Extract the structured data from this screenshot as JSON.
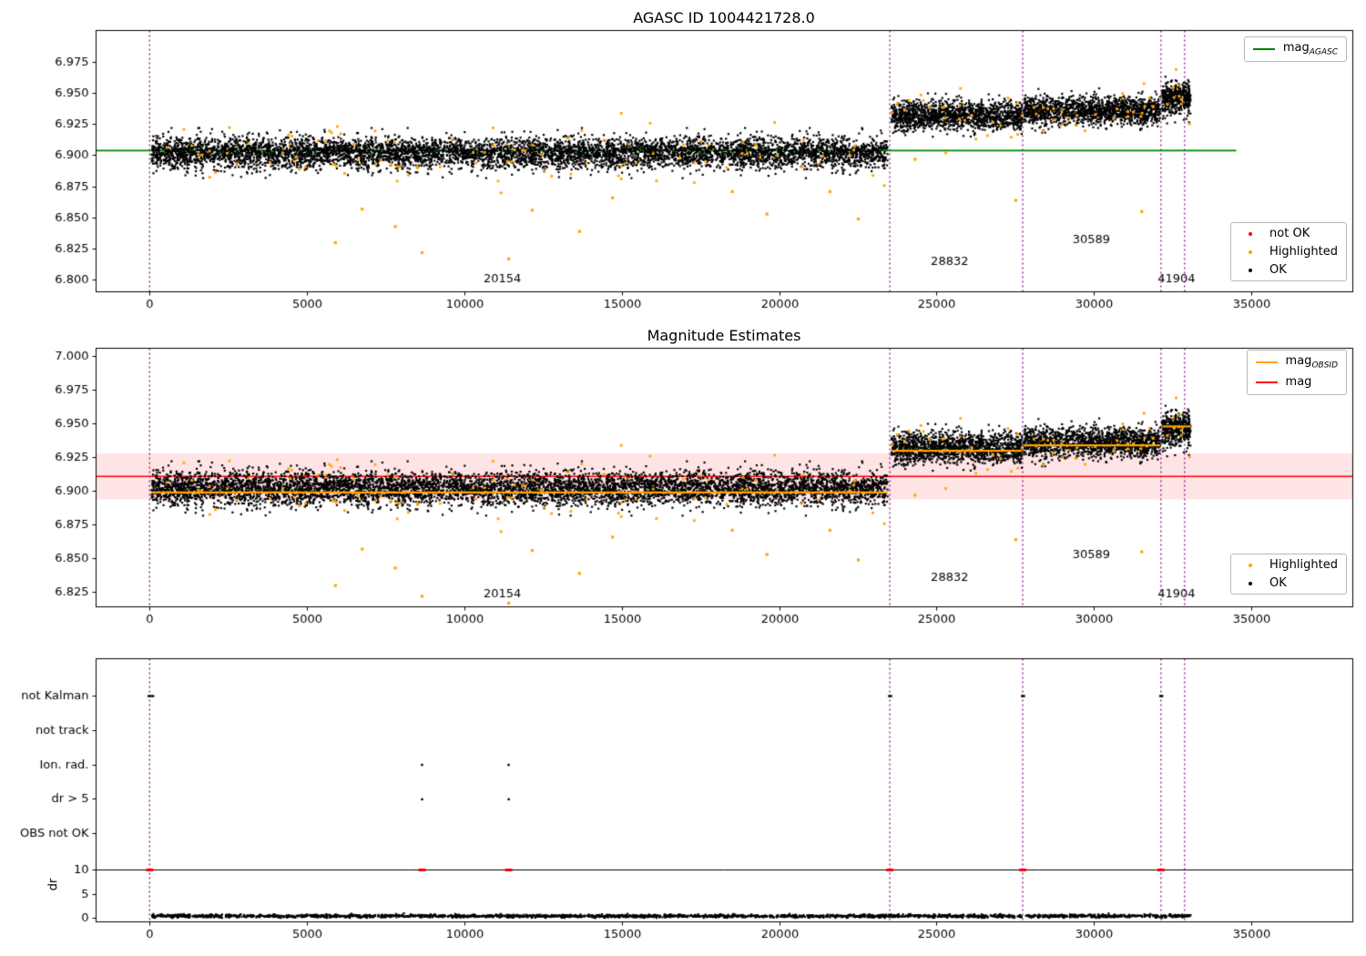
{
  "chart_data": [
    {
      "id": "agasc_mag",
      "type": "scatter",
      "title": "AGASC ID 1004421728.0",
      "xlim": [
        -1700,
        38200
      ],
      "ylim": [
        6.7905,
        7.0005
      ],
      "xticks": [
        0,
        5000,
        10000,
        15000,
        20000,
        25000,
        30000,
        35000
      ],
      "yticks": [
        6.8,
        6.825,
        6.85,
        6.875,
        6.9,
        6.925,
        6.95,
        6.975
      ],
      "mag_agasc": {
        "value": 6.904,
        "color": "#008000",
        "x_range": [
          -1700,
          34500
        ]
      },
      "vlines": {
        "x": [
          0,
          23500,
          27720,
          32110,
          32860
        ],
        "color": "#800080",
        "style": "dotted"
      },
      "colors": {
        "ok": "#000000",
        "highlighted": "#ffa500",
        "not_ok": "#ff0000"
      },
      "segments": [
        {
          "obsid": "20154",
          "x0": 60,
          "x1": 23430,
          "mean": 6.902,
          "sd": 0.0065,
          "n": 6200
        },
        {
          "obsid": "28832",
          "x0": 23560,
          "x1": 27700,
          "mean": 6.932,
          "sd": 0.0058,
          "n": 1400
        },
        {
          "obsid": "30589",
          "x0": 27760,
          "x1": 32080,
          "mean": 6.936,
          "sd": 0.0058,
          "n": 1450
        },
        {
          "obsid": "41904",
          "x0": 32150,
          "x1": 33060,
          "mean": 6.946,
          "sd": 0.0065,
          "n": 430
        }
      ],
      "highlighted_outliers": [
        [
          5900,
          6.83
        ],
        [
          6750,
          6.857
        ],
        [
          7800,
          6.843
        ],
        [
          8650,
          6.822
        ],
        [
          11400,
          6.817
        ],
        [
          12150,
          6.856
        ],
        [
          13650,
          6.839
        ],
        [
          14700,
          6.866
        ],
        [
          18500,
          6.871
        ],
        [
          19600,
          6.853
        ],
        [
          21600,
          6.871
        ],
        [
          22500,
          6.849
        ],
        [
          24300,
          6.897
        ],
        [
          27500,
          6.864
        ],
        [
          31500,
          6.855
        ]
      ],
      "annotations": [
        {
          "text": "20154",
          "x": 11200,
          "y": 6.801
        },
        {
          "text": "28832",
          "x": 25400,
          "y": 6.8145
        },
        {
          "text": "30589",
          "x": 29900,
          "y": 6.832
        },
        {
          "text": "41904",
          "x": 32600,
          "y": 6.801
        }
      ],
      "legend_line": {
        "items": [
          {
            "label": "mag",
            "sub": "AGASC",
            "color": "#008000"
          }
        ]
      },
      "legend_markers": {
        "items": [
          {
            "label": "not OK",
            "color": "#ff0000"
          },
          {
            "label": "Highlighted",
            "color": "#ffa500"
          },
          {
            "label": "OK",
            "color": "#000000"
          }
        ]
      }
    },
    {
      "id": "mag_estimates",
      "type": "scatter",
      "title": "Magnitude Estimates",
      "xlim": [
        -1700,
        38200
      ],
      "ylim": [
        6.8142,
        7.006
      ],
      "xticks": [
        0,
        5000,
        10000,
        15000,
        20000,
        25000,
        30000,
        35000
      ],
      "yticks": [
        6.825,
        6.85,
        6.875,
        6.9,
        6.925,
        6.95,
        6.975,
        7.0
      ],
      "mag": {
        "value": 6.911,
        "color": "#ff0000",
        "band": [
          6.894,
          6.928
        ],
        "band_color": "rgba(255,90,100,0.16)"
      },
      "mag_obsid": {
        "color": "#ffa500",
        "segments": [
          {
            "obsid": "20154",
            "x0": 60,
            "x1": 23430,
            "value": 6.899
          },
          {
            "obsid": "28832",
            "x0": 23560,
            "x1": 27700,
            "value": 6.93
          },
          {
            "obsid": "30589",
            "x0": 27760,
            "x1": 32080,
            "value": 6.934
          },
          {
            "obsid": "41904",
            "x0": 32150,
            "x1": 33060,
            "value": 6.948
          }
        ]
      },
      "vlines": {
        "x": [
          0,
          23500,
          27720,
          32110,
          32860
        ],
        "color": "#800080",
        "style": "dotted"
      },
      "colors": {
        "ok": "#000000",
        "highlighted": "#ffa500"
      },
      "segments": [
        {
          "obsid": "20154",
          "x0": 60,
          "x1": 23430,
          "mean": 6.902,
          "sd": 0.0065,
          "n": 6200
        },
        {
          "obsid": "28832",
          "x0": 23560,
          "x1": 27700,
          "mean": 6.932,
          "sd": 0.0058,
          "n": 1400
        },
        {
          "obsid": "30589",
          "x0": 27760,
          "x1": 32080,
          "mean": 6.936,
          "sd": 0.0058,
          "n": 1450
        },
        {
          "obsid": "41904",
          "x0": 32150,
          "x1": 33060,
          "mean": 6.946,
          "sd": 0.0065,
          "n": 430
        }
      ],
      "highlighted_outliers": [
        [
          5900,
          6.83
        ],
        [
          6750,
          6.857
        ],
        [
          7800,
          6.843
        ],
        [
          8650,
          6.822
        ],
        [
          11400,
          6.817
        ],
        [
          12150,
          6.856
        ],
        [
          13650,
          6.839
        ],
        [
          14700,
          6.866
        ],
        [
          18500,
          6.871
        ],
        [
          19600,
          6.853
        ],
        [
          21600,
          6.871
        ],
        [
          22500,
          6.849
        ],
        [
          24300,
          6.897
        ],
        [
          27500,
          6.864
        ],
        [
          31500,
          6.855
        ]
      ],
      "annotations": [
        {
          "text": "20154",
          "x": 11200,
          "y": 6.8235
        },
        {
          "text": "28832",
          "x": 25400,
          "y": 6.8355
        },
        {
          "text": "30589",
          "x": 29900,
          "y": 6.8525
        },
        {
          "text": "41904",
          "x": 32600,
          "y": 6.8235
        }
      ],
      "legend_line": {
        "items": [
          {
            "label": "mag",
            "sub": "OBSID",
            "color": "#ffa500"
          },
          {
            "label": "mag",
            "sub": "",
            "color": "#ff0000"
          }
        ]
      },
      "legend_markers": {
        "items": [
          {
            "label": "Highlighted",
            "color": "#ffa500"
          },
          {
            "label": "OK",
            "color": "#000000"
          }
        ]
      }
    },
    {
      "id": "flags",
      "type": "scatter",
      "xlim": [
        -1700,
        38200
      ],
      "xticks": [
        0,
        5000,
        10000,
        15000,
        20000,
        25000,
        30000,
        35000
      ],
      "rows": [
        "not Kalman",
        "not track",
        "Ion. rad.",
        "dr > 5",
        "OBS not OK"
      ],
      "ylabel": "dr",
      "dr_ticks": [
        10,
        5,
        0
      ],
      "dr_line": 10,
      "vlines": {
        "x": [
          0,
          23500,
          27720,
          32110,
          32860
        ],
        "color": "#800080",
        "style": "dotted"
      },
      "flag_events": [
        {
          "row": "not Kalman",
          "x": [
            -30,
            40,
            110,
            23480,
            23540,
            27700,
            27760,
            32090,
            32150
          ]
        },
        {
          "row": "Ion. rad.",
          "x": [
            8650,
            11400
          ]
        },
        {
          "row": "dr > 5",
          "x": [
            8650,
            11400
          ]
        }
      ],
      "dr_not_ok": {
        "x": [
          0,
          8650,
          11400,
          23500,
          27720,
          32110
        ],
        "value": 10,
        "color": "#ff0000"
      },
      "dr_scatter": {
        "x0": 60,
        "x1": 33060,
        "n": 2300,
        "mean": 0.45,
        "sd": 0.16
      }
    }
  ]
}
